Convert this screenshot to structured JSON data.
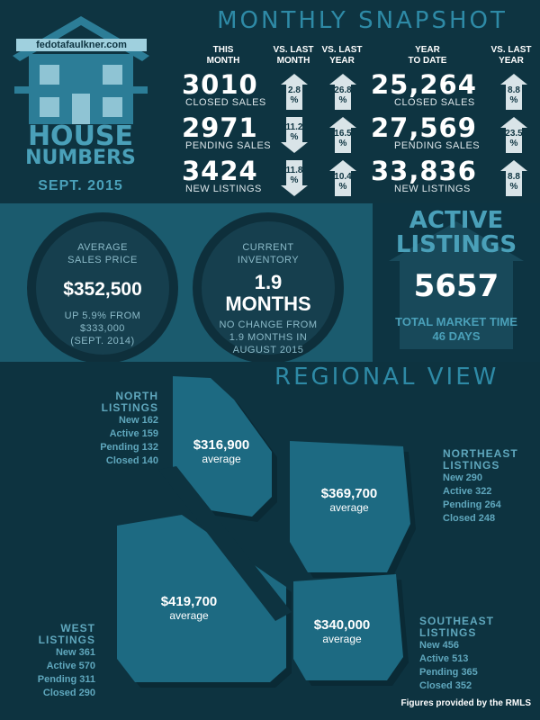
{
  "header": {
    "website": "fedotafaulkner.com",
    "house_line1": "HOUSE",
    "house_line2": "NUMBERS",
    "date": "SEPT. 2015",
    "title": "MONTHLY SNAPSHOT"
  },
  "columns": {
    "this_month": [
      "THIS",
      "MONTH"
    ],
    "vs_last_month": [
      "VS. LAST",
      "MONTH"
    ],
    "vs_last_year": [
      "VS. LAST",
      "YEAR"
    ],
    "ytd": [
      "YEAR",
      "TO DATE"
    ],
    "ytd_vs_last_year": [
      "VS. LAST",
      "YEAR"
    ]
  },
  "rows": [
    {
      "value": "3010",
      "label": "CLOSED SALES",
      "vs_month": "2.8\n%",
      "vs_month_dir": "up",
      "vs_year": "26.8\n%",
      "vs_year_dir": "up",
      "ytd": "25,264",
      "ytd_label": "CLOSED SALES",
      "ytd_vs": "8.8\n%",
      "ytd_dir": "up"
    },
    {
      "value": "2971",
      "label": "PENDING SALES",
      "vs_month": "11.2\n%",
      "vs_month_dir": "down",
      "vs_year": "16.5\n%",
      "vs_year_dir": "up",
      "ytd": "27,569",
      "ytd_label": "PENDING SALES",
      "ytd_vs": "23.5\n%",
      "ytd_dir": "up"
    },
    {
      "value": "3424",
      "label": "NEW LISTINGS",
      "vs_month": "11.8\n%",
      "vs_month_dir": "down",
      "vs_year": "10.4\n%",
      "vs_year_dir": "up",
      "ytd": "33,836",
      "ytd_label": "NEW LISTINGS",
      "ytd_vs": "8.8\n%",
      "ytd_dir": "up"
    }
  ],
  "avg_price": {
    "line1": "AVERAGE",
    "line2": "SALES PRICE",
    "value": "$352,500",
    "note1": "UP 5.9% FROM",
    "note2": "$333,000",
    "note3": "(SEPT. 2014)"
  },
  "inventory": {
    "line1": "CURRENT",
    "line2": "INVENTORY",
    "value1": "1.9",
    "value2": "MONTHS",
    "note1": "NO CHANGE FROM",
    "note2": "1.9 MONTHS IN",
    "note3": "AUGUST 2015"
  },
  "active": {
    "line1": "ACTIVE",
    "line2": "LISTINGS",
    "value": "5657",
    "time_label": "TOTAL MARKET TIME",
    "time_value": "46 DAYS"
  },
  "regional": {
    "title": "REGIONAL VIEW",
    "north": {
      "head1": "NORTH",
      "head2": "LISTINGS",
      "lines": [
        "New 162",
        "Active 159",
        "Pending 132",
        "Closed 140"
      ],
      "price": "$316,900",
      "avg": "average"
    },
    "northeast": {
      "head1": "NORTHEAST",
      "head2": "LISTINGS",
      "lines": [
        "New 290",
        "Active 322",
        "Pending 264",
        "Closed 248"
      ],
      "price": "$369,700",
      "avg": "average"
    },
    "west": {
      "head1": "WEST",
      "head2": "LISTINGS",
      "lines": [
        "New 361",
        "Active 570",
        "Pending 311",
        "Closed 290"
      ],
      "price": "$419,700",
      "avg": "average"
    },
    "southeast": {
      "head1": "SOUTHEAST",
      "head2": "LISTINGS",
      "lines": [
        "New 456",
        "Active 513",
        "Pending 365",
        "Closed 352"
      ],
      "price": "$340,000",
      "avg": "average"
    }
  },
  "footer": "Figures provided by the RMLS",
  "colors": {
    "accent": "#2e8aa6",
    "light_region": "#1d6a82",
    "dark": "#0d3340"
  }
}
